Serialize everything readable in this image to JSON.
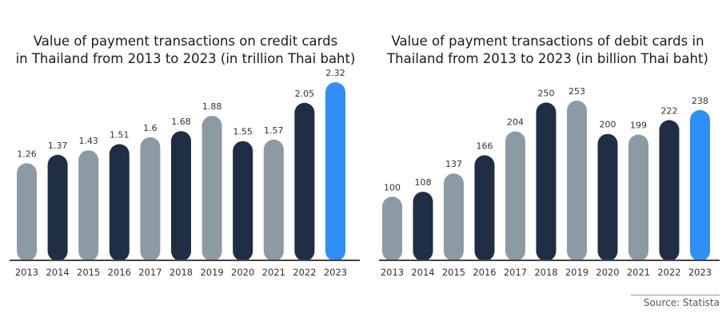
{
  "charts": [
    {
      "title_lines": [
        "Value of payment transactions on credit cards",
        "in Thailand from 2013 to 2023 (in trillion Thai baht)"
      ]
    },
    {
      "title_lines": [
        "Value of payment transactions of debit cards in",
        "Thailand from 2013 to 2023 (in billion Thai baht)"
      ]
    }
  ],
  "source": "Source: Statista",
  "colors": {
    "gray": "#8c9ba3",
    "navy": "#1f2d45",
    "blue": "#2f8ff7",
    "axis": "#444444",
    "label": "#333333"
  },
  "chart_data": [
    {
      "type": "bar",
      "title": "Value of payment transactions on credit cards in Thailand from 2013 to 2023 (in trillion Thai baht)",
      "categories": [
        "2013",
        "2014",
        "2015",
        "2016",
        "2017",
        "2018",
        "2019",
        "2020",
        "2021",
        "2022",
        "2023"
      ],
      "values": [
        1.26,
        1.37,
        1.43,
        1.51,
        1.6,
        1.68,
        1.88,
        1.55,
        1.57,
        2.05,
        2.32
      ],
      "value_labels": [
        "1.26",
        "1.37",
        "1.43",
        "1.51",
        "1.6",
        "1.68",
        "1.88",
        "1.55",
        "1.57",
        "2.05",
        "2.32"
      ],
      "bar_colors": [
        "gray",
        "navy",
        "gray",
        "navy",
        "gray",
        "navy",
        "gray",
        "navy",
        "gray",
        "navy",
        "blue"
      ],
      "ylim": [
        0,
        2.32
      ],
      "xlabel": "",
      "ylabel": "",
      "grid": false
    },
    {
      "type": "bar",
      "title": "Value of payment transactions of debit cards in Thailand from 2013 to 2023 (in billion Thai baht)",
      "categories": [
        "2013",
        "2014",
        "2015",
        "2016",
        "2017",
        "2018",
        "2019",
        "2020",
        "2021",
        "2022",
        "2023"
      ],
      "values": [
        100,
        108,
        137,
        166,
        204,
        250,
        253,
        200,
        199,
        222,
        238
      ],
      "value_labels": [
        "100",
        "108",
        "137",
        "166",
        "204",
        "250",
        "253",
        "200",
        "199",
        "222",
        "238"
      ],
      "bar_colors": [
        "gray",
        "navy",
        "gray",
        "navy",
        "gray",
        "navy",
        "gray",
        "navy",
        "gray",
        "navy",
        "blue"
      ],
      "ylim": [
        0,
        253
      ],
      "xlabel": "",
      "ylabel": "",
      "grid": false
    }
  ]
}
